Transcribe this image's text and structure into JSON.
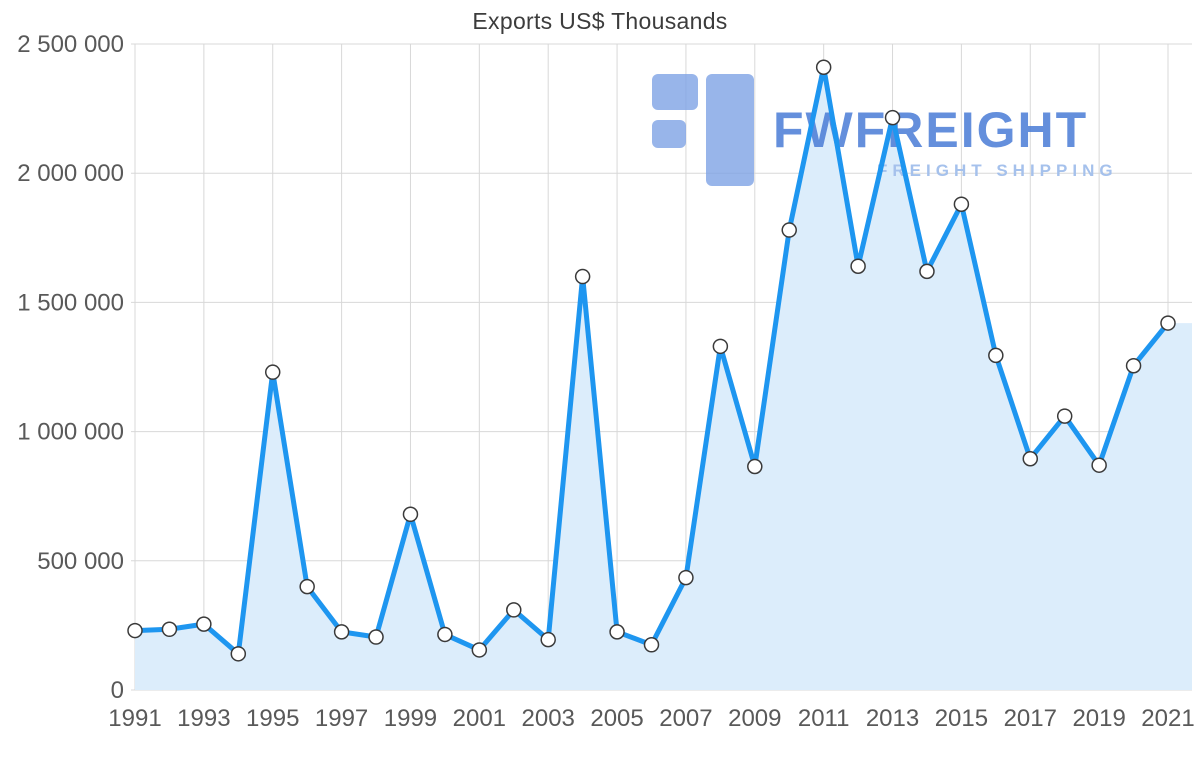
{
  "page": {
    "background_color": "#ffffff"
  },
  "chart_data": {
    "type": "area",
    "title": "Exports US$ Thousands",
    "x": [
      1991,
      1992,
      1993,
      1994,
      1995,
      1996,
      1997,
      1998,
      1999,
      2000,
      2001,
      2002,
      2003,
      2004,
      2005,
      2006,
      2007,
      2008,
      2009,
      2010,
      2011,
      2012,
      2013,
      2014,
      2015,
      2016,
      2017,
      2018,
      2019,
      2020,
      2021
    ],
    "values": [
      230000,
      235000,
      255000,
      140000,
      1230000,
      400000,
      225000,
      205000,
      680000,
      215000,
      155000,
      310000,
      195000,
      1600000,
      225000,
      175000,
      435000,
      1330000,
      865000,
      1780000,
      2410000,
      1640000,
      2215000,
      1620000,
      1880000,
      1295000,
      895000,
      1060000,
      870000,
      1255000,
      1420000
    ],
    "ylim": [
      0,
      2500000
    ],
    "yticks": [
      {
        "value": 0,
        "label": "0"
      },
      {
        "value": 500000,
        "label": "500 000"
      },
      {
        "value": 1000000,
        "label": "1 000 000"
      },
      {
        "value": 1500000,
        "label": "1 500 000"
      },
      {
        "value": 2000000,
        "label": "2 000 000"
      },
      {
        "value": 2500000,
        "label": "2 500 000"
      }
    ],
    "xtick_years": [
      1991,
      1993,
      1995,
      1997,
      1999,
      2001,
      2003,
      2005,
      2007,
      2009,
      2011,
      2013,
      2015,
      2017,
      2019,
      2021
    ],
    "xtick_labels": [
      "1991",
      "1993",
      "1995",
      "1997",
      "1999",
      "2001",
      "2003",
      "2005",
      "2007",
      "2009",
      "2011",
      "2013",
      "2015",
      "2017",
      "2019",
      "2021"
    ],
    "grid": true,
    "legend": "none",
    "line_color": "#1E96F0",
    "fill_color": "#DCEDFB",
    "grid_color": "#D8D8D8",
    "marker_fill": "#FFFFFF",
    "marker_stroke": "#3A3A3A",
    "axis_text_color": "#595959",
    "title_color": "#3C3C3C"
  },
  "watermark": {
    "brand": "FWFREIGHT",
    "tagline": "FREIGHT SHIPPING",
    "brand_color": "#4A7CD6",
    "tagline_color": "#A5C1EC",
    "logo_color": "#7FA3E6"
  }
}
